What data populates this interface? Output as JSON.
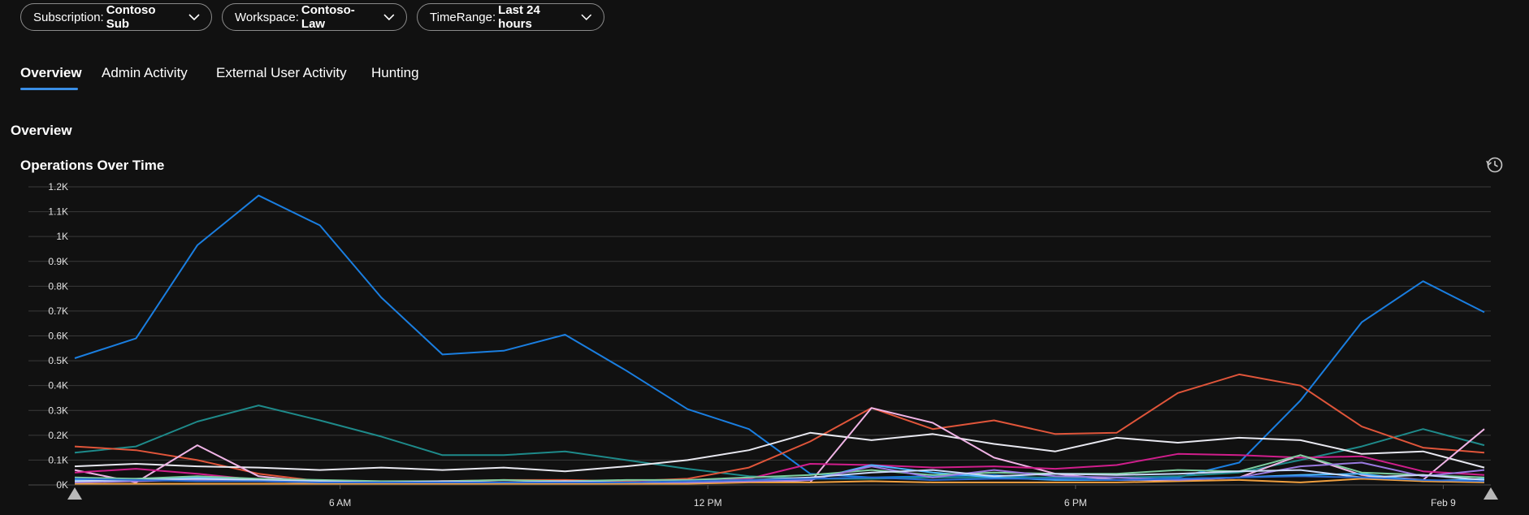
{
  "filters": [
    {
      "key": "Subscription:",
      "value": "Contoso Sub"
    },
    {
      "key": "Workspace:",
      "value": "Contoso-Law"
    },
    {
      "key": "TimeRange:",
      "value": "Last 24 hours"
    }
  ],
  "tabs": [
    "Overview",
    "Admin Activity",
    "External User Activity",
    "Hunting"
  ],
  "active_tab": "Overview",
  "section_title": "Overview",
  "chart_title": "Operations Over Time",
  "icons": {
    "filter_dropdown": "chevron-down-icon",
    "history": "history-icon",
    "range_handle": "triangle-handle-icon"
  },
  "chart_data": {
    "type": "line",
    "title": "Operations Over Time",
    "ylim": [
      0,
      1200
    ],
    "y_ticks": [
      "0K",
      "0.1K",
      "0.2K",
      "0.3K",
      "0.4K",
      "0.5K",
      "0.6K",
      "0.7K",
      "0.8K",
      "0.9K",
      "1K",
      "1.1K",
      "1.2K"
    ],
    "x_tick_labels": [
      "6 AM",
      "12 PM",
      "6 PM",
      "Feb 9"
    ],
    "x_tick_hours": [
      6,
      12,
      18,
      24
    ],
    "x_hours": [
      1.67,
      2.67,
      3.67,
      4.67,
      5.67,
      6.67,
      7.67,
      8.67,
      9.67,
      10.67,
      11.67,
      12.67,
      13.67,
      14.67,
      15.67,
      16.67,
      17.67,
      18.67,
      19.67,
      20.67,
      21.67,
      22.67,
      23.67,
      24.67
    ],
    "grid": true,
    "legend": "none",
    "series": [
      {
        "color": "#1a7ee0",
        "values": [
          510,
          590,
          965,
          1165,
          1045,
          755,
          525,
          540,
          605,
          460,
          305,
          225,
          45,
          30,
          35,
          40,
          25,
          30,
          30,
          90,
          340,
          655,
          820,
          695
        ]
      },
      {
        "color": "#1e8a8a",
        "values": [
          130,
          155,
          255,
          320,
          260,
          195,
          120,
          120,
          135,
          100,
          65,
          35,
          25,
          25,
          30,
          30,
          30,
          30,
          35,
          50,
          100,
          155,
          225,
          160
        ]
      },
      {
        "color": "#e0553a",
        "values": [
          155,
          140,
          100,
          45,
          15,
          10,
          15,
          20,
          20,
          15,
          25,
          70,
          175,
          310,
          225,
          260,
          205,
          210,
          370,
          445,
          400,
          235,
          150,
          130
        ]
      },
      {
        "color": "#e8e8f0",
        "values": [
          75,
          85,
          75,
          70,
          60,
          70,
          60,
          70,
          55,
          75,
          100,
          140,
          210,
          180,
          205,
          165,
          135,
          190,
          170,
          190,
          180,
          125,
          135,
          70
        ]
      },
      {
        "color": "#f0b4e6",
        "values": [
          60,
          10,
          160,
          35,
          10,
          5,
          10,
          10,
          15,
          5,
          10,
          20,
          10,
          310,
          250,
          110,
          45,
          20,
          20,
          30,
          120,
          40,
          20,
          225
        ]
      },
      {
        "color": "#d01e8c",
        "values": [
          50,
          65,
          45,
          20,
          10,
          5,
          10,
          10,
          10,
          10,
          20,
          25,
          85,
          80,
          70,
          75,
          65,
          80,
          125,
          120,
          110,
          115,
          55,
          40
        ]
      },
      {
        "color": "#4ab8ff",
        "values": [
          20,
          25,
          30,
          20,
          10,
          10,
          10,
          10,
          10,
          10,
          10,
          15,
          20,
          80,
          50,
          30,
          20,
          20,
          25,
          30,
          40,
          45,
          15,
          25
        ]
      },
      {
        "color": "#7ecfa0",
        "values": [
          30,
          25,
          35,
          25,
          20,
          15,
          15,
          20,
          15,
          20,
          20,
          30,
          40,
          60,
          40,
          50,
          45,
          45,
          60,
          55,
          120,
          50,
          40,
          30
        ]
      },
      {
        "color": "#f0a040",
        "values": [
          5,
          5,
          5,
          5,
          5,
          5,
          5,
          5,
          5,
          5,
          5,
          10,
          10,
          15,
          10,
          10,
          10,
          10,
          15,
          20,
          10,
          25,
          15,
          10
        ]
      },
      {
        "color": "#9a7ae0",
        "values": [
          10,
          15,
          20,
          15,
          10,
          10,
          10,
          10,
          10,
          10,
          10,
          15,
          20,
          75,
          30,
          60,
          35,
          30,
          20,
          30,
          75,
          90,
          35,
          60
        ]
      },
      {
        "color": "#c8d8f8",
        "values": [
          15,
          20,
          25,
          20,
          15,
          10,
          15,
          10,
          15,
          10,
          15,
          20,
          30,
          50,
          60,
          35,
          45,
          40,
          45,
          55,
          60,
          30,
          40,
          20
        ]
      },
      {
        "color": "#2a6ad0",
        "values": [
          25,
          20,
          15,
          15,
          10,
          10,
          10,
          10,
          10,
          10,
          15,
          20,
          25,
          30,
          20,
          25,
          25,
          20,
          25,
          30,
          35,
          30,
          20,
          15
        ]
      }
    ]
  }
}
